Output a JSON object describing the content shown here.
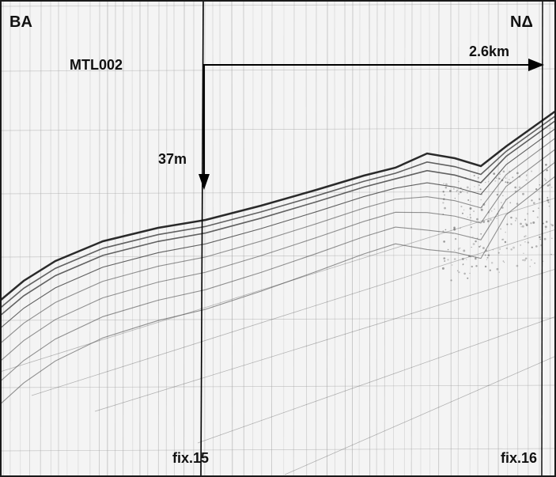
{
  "labels": {
    "left_corner": "BA",
    "right_corner": "NΔ",
    "line_id": "MTL002",
    "horizontal_distance": "2.6km",
    "depth": "37m",
    "fix_left": "fix.15",
    "fix_right": "fix.16"
  },
  "colors": {
    "background": "#f4f4f4",
    "frame": "#1a1a1a",
    "annotation": "#000000",
    "reflector": "#3c3c3c",
    "grid": "#a0a0a0"
  },
  "icons": {
    "depth_arrow": "arrow-down-icon",
    "distance_arrow": "arrow-right-icon"
  }
}
